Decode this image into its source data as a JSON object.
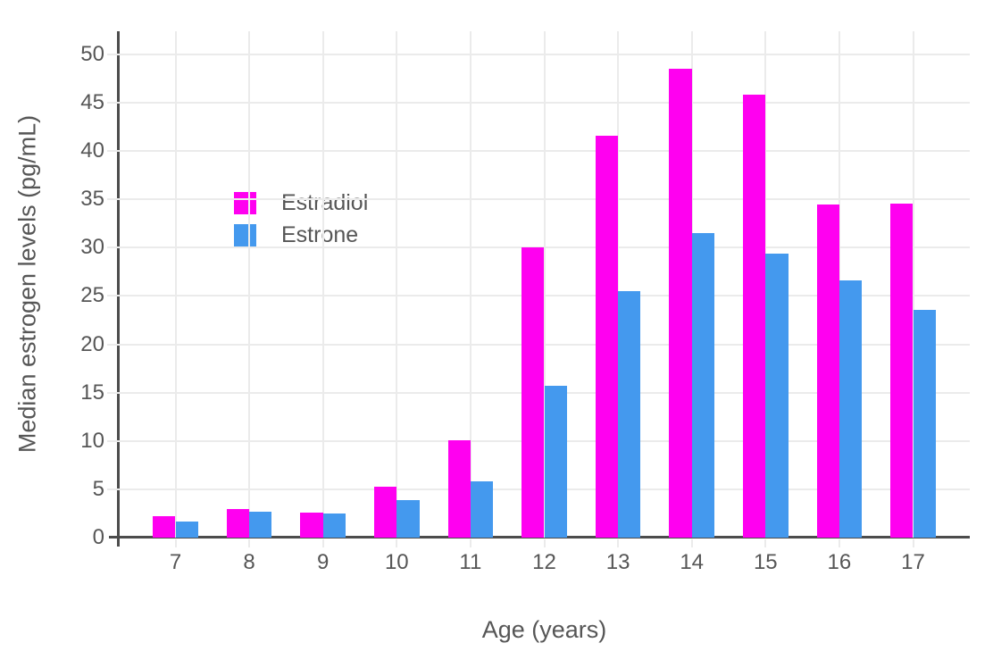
{
  "chart_data": {
    "type": "bar",
    "title": "",
    "xlabel": "Age (years)",
    "ylabel": "Median estrogen levels (pg/mL)",
    "categories": [
      "7",
      "8",
      "9",
      "10",
      "11",
      "12",
      "13",
      "14",
      "15",
      "16",
      "17"
    ],
    "series": [
      {
        "name": "Estradiol",
        "color": "#ff00f0",
        "values": [
          2.2,
          3.0,
          2.6,
          5.3,
          10.1,
          30.0,
          41.6,
          48.5,
          45.8,
          34.5,
          34.6
        ]
      },
      {
        "name": "Estrone",
        "color": "#4499ee",
        "values": [
          1.7,
          2.7,
          2.5,
          3.9,
          5.8,
          15.7,
          25.5,
          31.5,
          29.4,
          26.6,
          23.6
        ]
      }
    ],
    "yticks": [
      0,
      5,
      10,
      15,
      20,
      25,
      30,
      35,
      40,
      45,
      50
    ],
    "ylim": [
      0,
      52.4
    ],
    "grid": true,
    "legend_position": "inside-top-left",
    "colors": {
      "background": "#ffffff",
      "gridline": "#ebebeb",
      "axis_line": "#4c4c4c",
      "text": "#565656"
    }
  }
}
